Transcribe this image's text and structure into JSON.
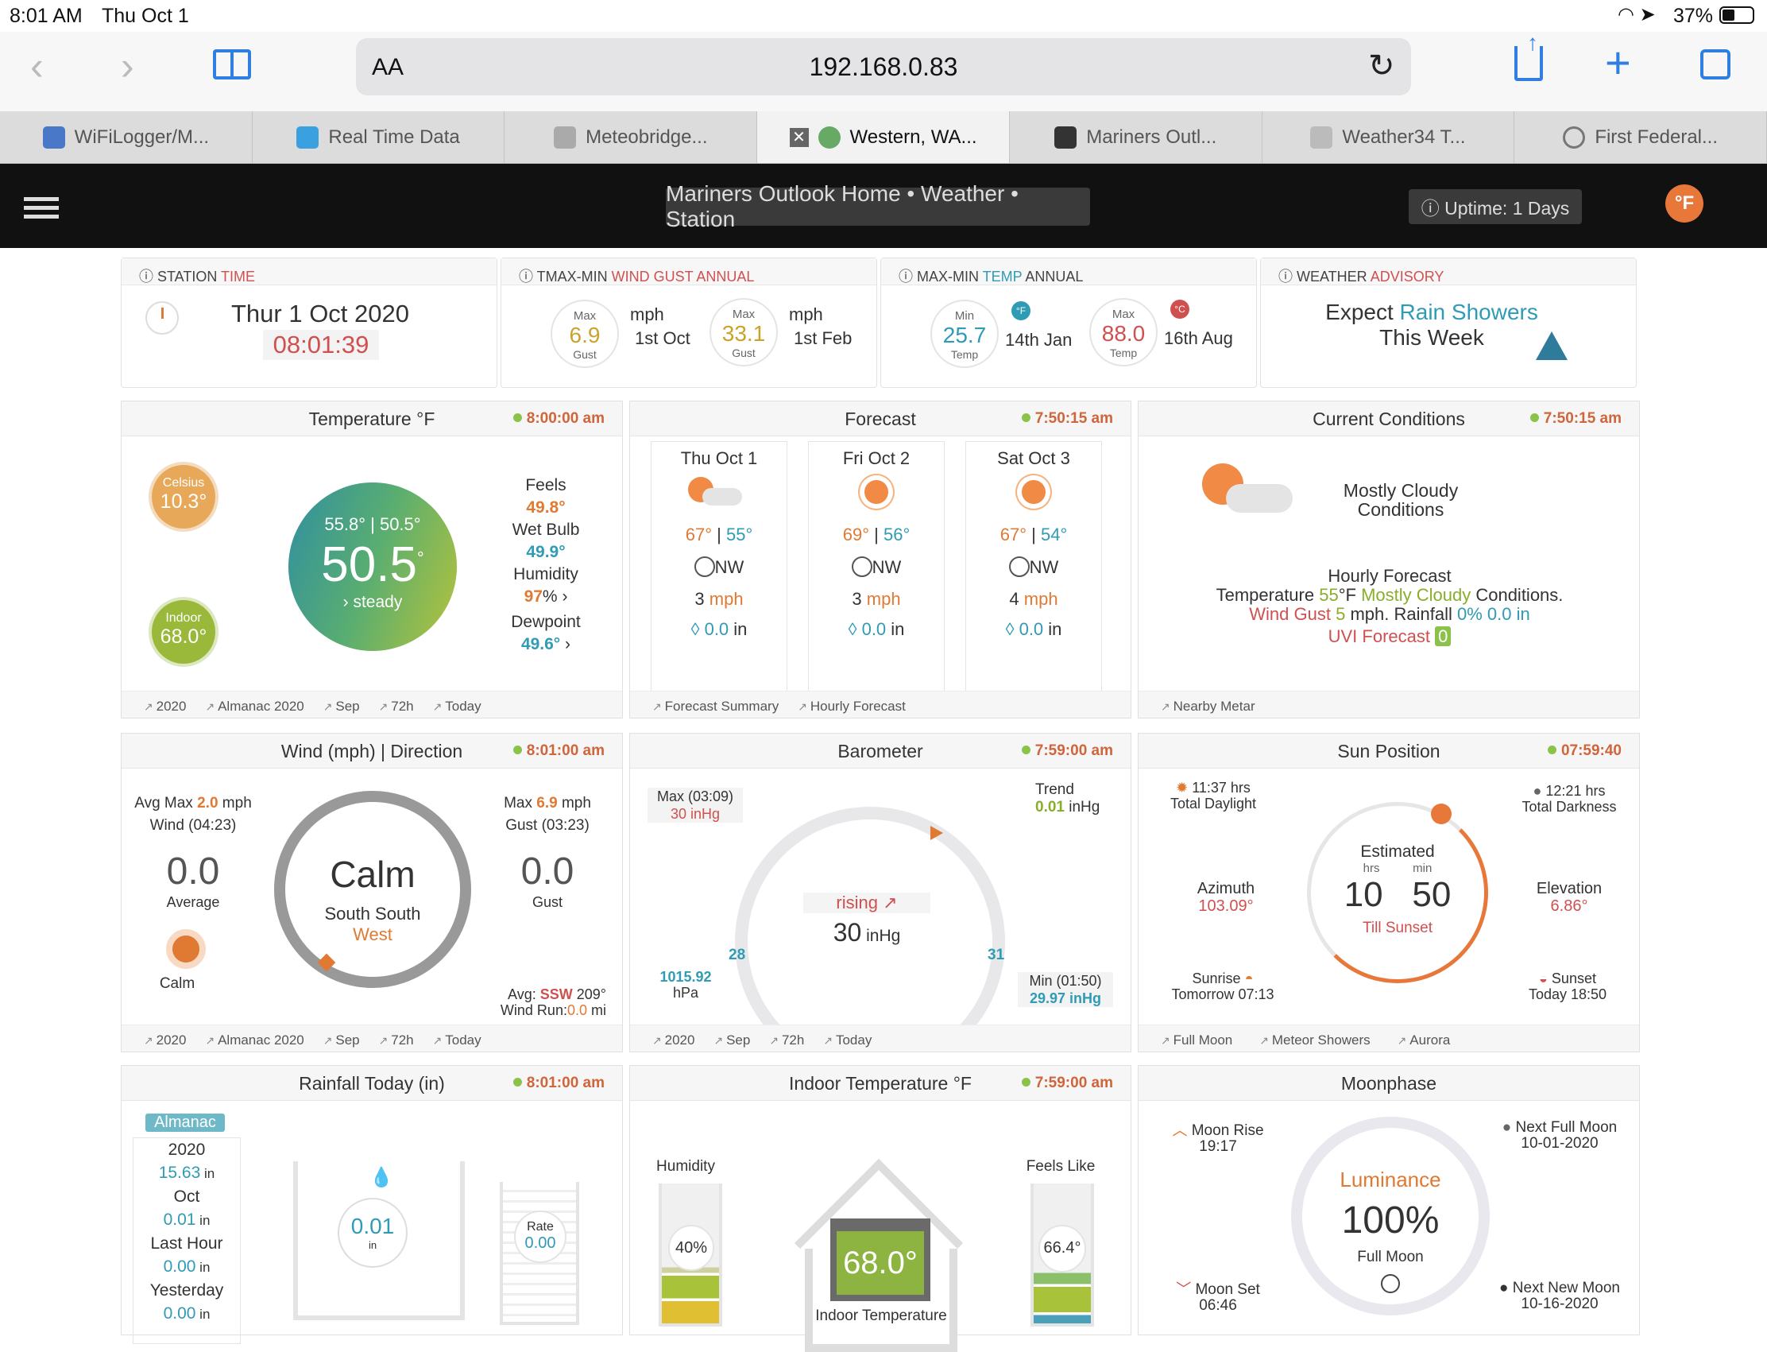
{
  "status": {
    "time": "8:01 AM",
    "date": "Thu Oct 1",
    "battery": "37%"
  },
  "browser": {
    "url": "192.168.0.83",
    "aa": "AA",
    "tabs": [
      {
        "label": "WiFiLogger/M...",
        "color": "#4a78c8"
      },
      {
        "label": "Real Time Data",
        "color": "#3aa0e0"
      },
      {
        "label": "Meteobridge...",
        "color": "#aaa"
      },
      {
        "label": "Western, WA...",
        "color": "#6a6"
      },
      {
        "label": "Mariners Outl...",
        "color": "#333"
      },
      {
        "label": "Weather34 T...",
        "color": "#bbb"
      },
      {
        "label": "First Federal...",
        "color": "#777"
      }
    ]
  },
  "header": {
    "title": "Mariners Outlook  Home • Weather • Station",
    "uptime": "ⓘ Uptime: 1 Days",
    "unit": "°F"
  },
  "station_time": {
    "title1": "ⓘ STATION ",
    "title2": "TIME",
    "date": "Thur 1 Oct 2020",
    "time": "08:01:39"
  },
  "gust_annual": {
    "title1": "ⓘ TMAX-MIN ",
    "title2": "WIND GUST ANNUAL",
    "max_label": "Max",
    "gust_label": "Gust",
    "unit": "mph",
    "v1": "6.9",
    "d1": "1st Oct",
    "v2": "33.1",
    "d2": "1st Feb"
  },
  "temp_annual": {
    "title1": "ⓘ MAX-MIN ",
    "title2": "TEMP",
    "title3": " ANNUAL",
    "min_label": "Min",
    "max_label": "Max",
    "temp_label": "Temp",
    "min": "25.7",
    "min_date": "14th Jan",
    "max": "88.0",
    "max_date": "16th Aug",
    "f": "°F",
    "c": "°C"
  },
  "advisory": {
    "title1": "ⓘ WEATHER ",
    "title2": "ADVISORY",
    "l1a": "Expect ",
    "l1b": "Rain Showers",
    "l2": "This Week"
  },
  "temperature": {
    "title": "Temperature °F",
    "time": "8:00:00 am",
    "celsius_label": "Celsius",
    "celsius": "10.3°",
    "indoor_label": "Indoor",
    "indoor": "68.0°",
    "hilo": "55.8° | 50.5°",
    "value": "50.5",
    "deg": "°",
    "trend": "›  steady",
    "feels_label": "Feels",
    "feels": "49.8°",
    "wetbulb_label": "Wet Bulb",
    "wetbulb": "49.9°",
    "humidity_label": "Humidity",
    "humidity": "97",
    "pct": "%",
    "dew_label": "Dewpoint",
    "dew": "49.6°",
    "links": [
      "2020",
      "Almanac 2020",
      "Sep",
      "72h",
      "Today"
    ]
  },
  "forecast": {
    "title": "Forecast",
    "time": "7:50:15 am",
    "days": [
      {
        "day": "Thu Oct 1",
        "hi": "67°",
        "lo": "55°",
        "dir": "NW",
        "wind": "3",
        "rain": "0.0"
      },
      {
        "day": "Fri Oct 2",
        "hi": "69°",
        "lo": "56°",
        "dir": "NW",
        "wind": "3",
        "rain": "0.0"
      },
      {
        "day": "Sat Oct 3",
        "hi": "67°",
        "lo": "54°",
        "dir": "NW",
        "wind": "4",
        "rain": "0.0"
      }
    ],
    "mph": "mph",
    "in": "in",
    "links": [
      "Forecast Summary",
      "Hourly Forecast"
    ]
  },
  "current": {
    "title": "Current Conditions",
    "time": "7:50:15 am",
    "cond1": "Mostly Cloudy",
    "cond2": "Conditions",
    "hourly": "Hourly Forecast",
    "t1": "Temperature ",
    "t2": "55",
    "t3": "°F ",
    "t4": "Mostly Cloudy",
    "t5": " Conditions.",
    "w1": "Wind Gust ",
    "w2": "5",
    "w3": " mph. Rainfall ",
    "w4": "0% 0.0",
    "w5": " in",
    "uvi": "UVI Forecast ",
    "uvi_v": "0",
    "links": [
      "Nearby Metar"
    ]
  },
  "wind": {
    "title": "Wind (mph) | Direction",
    "time": "8:01:00 am",
    "avgmax1": "Avg Max ",
    "avgmax2": "2.0",
    "avgmax3": " mph",
    "windt": "Wind (04:23)",
    "avg": "0.0",
    "avg_label": "Average",
    "calm": "Calm",
    "max1": "Max ",
    "max2": "6.9",
    "max3": " mph",
    "gustt": "Gust (03:23)",
    "gust": "0.0",
    "gust_label": "Gust",
    "center": "Calm",
    "dir1": "South South",
    "dir2": "West",
    "avg_dir1": "Avg: ",
    "avg_dir2": "SSW",
    "avg_dir3": " 209°",
    "run1": "Wind Run:",
    "run2": "0.0",
    "run3": " mi",
    "links": [
      "2020",
      "Almanac 2020",
      "Sep",
      "72h",
      "Today"
    ]
  },
  "baro": {
    "title": "Barometer",
    "time": "7:59:00 am",
    "max_label": "Max (03:09)",
    "max": "30 inHg",
    "trend_label": "Trend",
    "trend": "0.01",
    "trend_unit": " inHg",
    "rising": "rising",
    "value": "30",
    "unit": " inHg",
    "lo": "28",
    "hi": "31",
    "hpa": "1015.92",
    "hpa_unit": "hPa",
    "min_label": "Min (01:50)",
    "min": "29.97 inHg",
    "links": [
      "2020",
      "Sep",
      "72h",
      "Today"
    ]
  },
  "sun": {
    "title": "Sun Position",
    "time": "07:59:40",
    "daylight": "11:37 hrs",
    "daylight_label": "Total Daylight",
    "dark": "12:21 hrs",
    "dark_label": "Total Darkness",
    "est": "Estimated",
    "hrs": "hrs",
    "min": "min",
    "h": "10",
    "m": "50",
    "till": "Till Sunset",
    "az_label": "Azimuth",
    "az": "103.09°",
    "el_label": "Elevation",
    "el": "6.86°",
    "rise_label": "Sunrise",
    "rise": "Tomorrow 07:13",
    "set_label": "Sunset",
    "set": "Today 18:50",
    "links": [
      "Full Moon",
      "Meteor Showers",
      "Aurora"
    ]
  },
  "rain": {
    "title": "Rainfall Today (in)",
    "time": "8:01:00 am",
    "almanac": "Almanac",
    "y": "2020",
    "yv": "15.63",
    "m": "Oct",
    "mv": "0.01",
    "lh": "Last Hour",
    "lhv": "0.00",
    "yd": "Yesterday",
    "ydv": "0.00",
    "in": " in",
    "today": "0.01",
    "today_unit": "in",
    "rate_label": "Rate",
    "rate": "0.00"
  },
  "indoor": {
    "title": "Indoor Temperature °F",
    "time": "7:59:00 am",
    "hum_label": "Humidity",
    "hum": "40%",
    "feels_label": "Feels Like",
    "feels": "66.4°",
    "temp": "68.0°",
    "label": "Indoor Temperature"
  },
  "moon": {
    "title": "Moonphase",
    "rise_label": "Moon Rise",
    "rise": "19:17",
    "set_label": "Moon Set",
    "set": "06:46",
    "nf_label": "Next Full Moon",
    "nf": "10-01-2020",
    "nn_label": "Next New Moon",
    "nn": "10-16-2020",
    "lum": "Luminance",
    "pct": "100%",
    "phase": "Full Moon"
  }
}
